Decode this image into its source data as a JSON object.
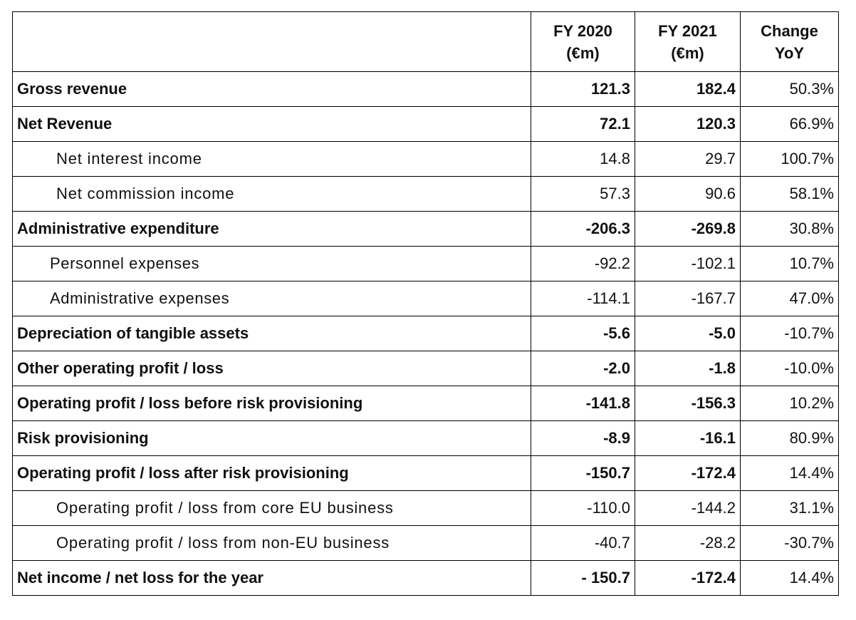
{
  "table": {
    "header": [
      [
        "",
        ""
      ],
      [
        "FY 2020",
        "(€m)"
      ],
      [
        "FY 2021",
        "(€m)"
      ],
      [
        "Change",
        "YoY"
      ]
    ],
    "rows": [
      [
        "Gross revenue",
        "121.3",
        "182.4",
        "50.3%"
      ],
      [
        "Net Revenue",
        "72.1",
        "120.3",
        "66.9%"
      ],
      [
        "Net interest income",
        "14.8",
        "29.7",
        "100.7%"
      ],
      [
        "Net commission income",
        "57.3",
        "90.6",
        "58.1%"
      ],
      [
        "Administrative expenditure",
        "-206.3",
        "-269.8",
        "30.8%"
      ],
      [
        "Personnel expenses",
        "-92.2",
        "-102.1",
        "10.7%"
      ],
      [
        "Administrative expenses",
        "-114.1",
        "-167.7",
        "47.0%"
      ],
      [
        "Depreciation of tangible assets",
        "-5.6",
        "-5.0",
        "-10.7%"
      ],
      [
        "Other operating profit / loss",
        "-2.0",
        "-1.8",
        "-10.0%"
      ],
      [
        "Operating profit / loss before risk provisioning",
        "-141.8",
        "-156.3",
        "10.2%"
      ],
      [
        "Risk provisioning",
        "-8.9",
        "-16.1",
        "80.9%"
      ],
      [
        "Operating profit / loss after risk provisioning",
        "-150.7",
        "-172.4",
        "14.4%"
      ],
      [
        "Operating profit / loss from core EU business",
        "-110.0",
        "-144.2",
        "31.1%"
      ],
      [
        "Operating profit / loss from non-EU business",
        "-40.7",
        "-28.2",
        "-30.7%"
      ],
      [
        "Net income / net loss for the year",
        "- 150.7",
        "-172.4",
        "14.4%"
      ]
    ]
  }
}
